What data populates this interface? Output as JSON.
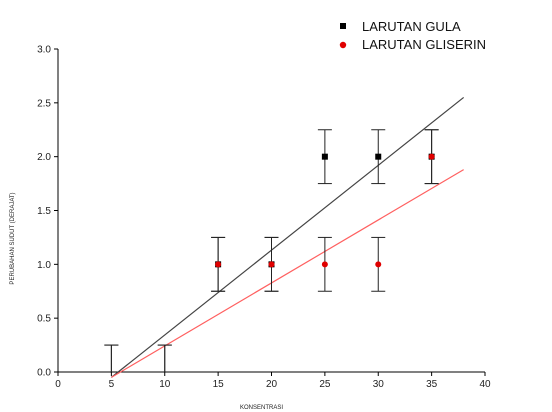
{
  "chart_data": {
    "type": "scatter",
    "xlabel": "KONSENTRASI",
    "ylabel": "PERUBAHAN SUDUT (DERAJAT)",
    "xlim": [
      0,
      40
    ],
    "ylim": [
      0,
      3
    ],
    "xticks": [
      "0",
      "5",
      "10",
      "15",
      "20",
      "25",
      "30",
      "35",
      "40"
    ],
    "yticks": [
      "0.0",
      "0.5",
      "1.0",
      "1.5",
      "2.0",
      "2.5",
      "3.0"
    ],
    "legend_position": "top-right",
    "series": [
      {
        "name": "LARUTAN GULA",
        "marker": "square",
        "color": "#000000",
        "points": [
          {
            "x": 5,
            "y": 0,
            "err": 0.25
          },
          {
            "x": 10,
            "y": 0,
            "err": 0.25
          },
          {
            "x": 15,
            "y": 1.0,
            "err": 0.25
          },
          {
            "x": 20,
            "y": 1.0,
            "err": 0.25
          },
          {
            "x": 25,
            "y": 2.0,
            "err": 0.25
          },
          {
            "x": 30,
            "y": 2.0,
            "err": 0.25
          },
          {
            "x": 35,
            "y": 2.0,
            "err": 0.25
          }
        ],
        "fit": {
          "x": [
            5,
            38
          ],
          "y": [
            -0.05,
            2.55
          ],
          "color": "#444444"
        }
      },
      {
        "name": "LARUTAN GLISERIN",
        "marker": "circle",
        "color": "#e00000",
        "points": [
          {
            "x": 5,
            "y": 0,
            "err": 0.25
          },
          {
            "x": 10,
            "y": 0,
            "err": 0.25
          },
          {
            "x": 15,
            "y": 1.0,
            "err": 0.25
          },
          {
            "x": 20,
            "y": 1.0,
            "err": 0.25
          },
          {
            "x": 25,
            "y": 1.0,
            "err": 0.25
          },
          {
            "x": 30,
            "y": 1.0,
            "err": 0.25
          },
          {
            "x": 35,
            "y": 2.0,
            "err": 0.25
          }
        ],
        "fit": {
          "x": [
            5,
            38
          ],
          "y": [
            -0.05,
            1.88
          ],
          "color": "#ff6060"
        }
      }
    ]
  }
}
